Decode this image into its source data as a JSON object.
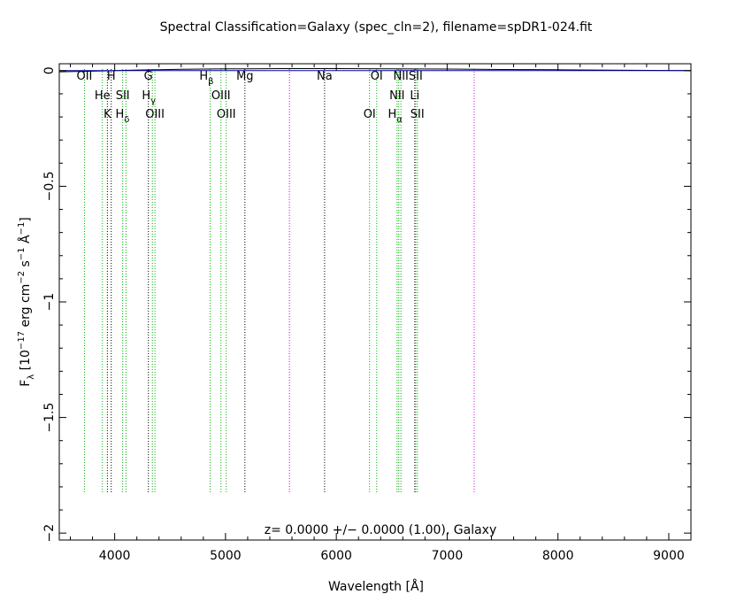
{
  "chart_data": {
    "type": "line",
    "title": "Spectral Classification=Galaxy (spec_cln=2), filename=spDR1-024.fit",
    "xlabel": "Wavelength [Å]",
    "ylabel_parts": {
      "f": "F",
      "lambda": "λ",
      "open": " [10",
      "exp1": "−17",
      "erg": " erg cm",
      "exp2": "−2",
      "s": " s",
      "exp3": "−1",
      "ang": " Å",
      "exp4": "−1",
      "close": "]"
    },
    "xlim": [
      3500,
      9200
    ],
    "ylim": [
      -2.03,
      0.03
    ],
    "x_ticks": [
      4000,
      5000,
      6000,
      7000,
      8000,
      9000
    ],
    "x_tick_labels": [
      "4000",
      "5000",
      "6000",
      "7000",
      "8000",
      "9000"
    ],
    "y_ticks": [
      0,
      -0.5,
      -1,
      -1.5,
      -2
    ],
    "y_tick_labels": [
      "0",
      "−0.5",
      "−1",
      "−1.5",
      "−2"
    ],
    "annotation": "z= 0.0000 +/− 0.0000 (1.00), Galaxy",
    "colors": {
      "spectrum": "#000000",
      "continuum": "#0000aa",
      "emission_line": "#00b000",
      "absorption_line": "#000000",
      "sky_line": "#cc00cc"
    },
    "series": [
      {
        "x": [
          3500,
          3800,
          4000,
          4200,
          4400,
          4600,
          4800,
          5000,
          5200,
          5500,
          6000,
          6500,
          7000,
          7500,
          8000,
          8500,
          9000,
          9200
        ],
        "y": [
          -0.005,
          -0.002,
          0.0,
          0.003,
          0.004,
          0.006,
          0.007,
          0.008,
          0.008,
          0.009,
          0.009,
          0.008,
          0.007,
          0.005,
          0.004,
          0.002,
          0.001,
          0.0
        ]
      },
      {
        "x": [
          3500,
          9200
        ],
        "y": [
          0.0,
          0.0
        ]
      }
    ],
    "lines": [
      {
        "label": "OII",
        "wavelength": 3727,
        "kind": "emission",
        "row": 0
      },
      {
        "label": "H",
        "wavelength": 3969,
        "kind": "absorption",
        "row": 0
      },
      {
        "label": "G",
        "wavelength": 4304,
        "kind": "absorption",
        "row": 0
      },
      {
        "label": "Mg",
        "wavelength": 5175,
        "kind": "absorption",
        "row": 0
      },
      {
        "label": "Na",
        "wavelength": 5894,
        "kind": "absorption",
        "row": 0
      },
      {
        "label": "OI",
        "wavelength": 6364,
        "kind": "emission",
        "row": 0
      },
      {
        "label": "NII",
        "wavelength": 6583,
        "kind": "emission",
        "row": 0
      },
      {
        "label": "SII",
        "wavelength": 6716,
        "kind": "emission",
        "row": 0
      },
      {
        "label": "He",
        "wavelength": 3889,
        "kind": "emission",
        "row": 1
      },
      {
        "label": "SII",
        "wavelength": 4072,
        "kind": "emission",
        "row": 1
      },
      {
        "label": "OIII",
        "wavelength": 4959,
        "kind": "emission",
        "row": 1
      },
      {
        "label": "NII",
        "wavelength": 6548,
        "kind": "emission",
        "row": 1
      },
      {
        "label": "Li",
        "wavelength": 6708,
        "kind": "absorption",
        "row": 1
      },
      {
        "label": "K",
        "wavelength": 3934,
        "kind": "absorption",
        "row": 2
      },
      {
        "label": "OIII",
        "wavelength": 4363,
        "kind": "emission",
        "row": 2
      },
      {
        "label": "OIII",
        "wavelength": 5007,
        "kind": "emission",
        "row": 2
      },
      {
        "label": "OI",
        "wavelength": 6300,
        "kind": "emission",
        "row": 2
      },
      {
        "label": "SII",
        "wavelength": 6731,
        "kind": "emission",
        "row": 2
      }
    ],
    "greek_lines": [
      {
        "base": "H",
        "sub": "β",
        "wavelength": 4861,
        "row": 0
      },
      {
        "base": "H",
        "sub": "γ",
        "wavelength": 4340,
        "row": 1
      },
      {
        "base": "H",
        "sub": "δ",
        "wavelength": 4102,
        "row": 2
      },
      {
        "base": "H",
        "sub": "α",
        "wavelength": 6563,
        "row": 2
      }
    ],
    "sky_lines": [
      5577,
      7244
    ]
  }
}
